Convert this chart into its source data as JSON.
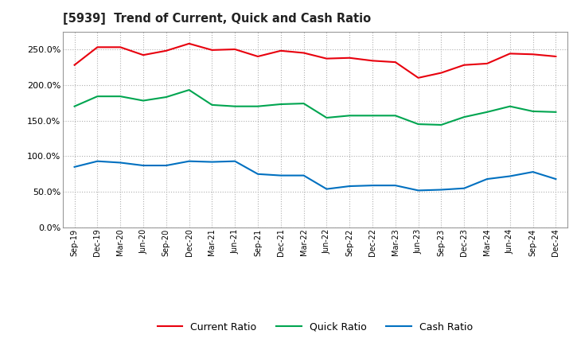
{
  "title": "[5939]  Trend of Current, Quick and Cash Ratio",
  "x_labels": [
    "Sep-19",
    "Dec-19",
    "Mar-20",
    "Jun-20",
    "Sep-20",
    "Dec-20",
    "Mar-21",
    "Jun-21",
    "Sep-21",
    "Dec-21",
    "Mar-22",
    "Jun-22",
    "Sep-22",
    "Dec-22",
    "Mar-23",
    "Jun-23",
    "Sep-23",
    "Dec-23",
    "Mar-24",
    "Jun-24",
    "Sep-24",
    "Dec-24"
  ],
  "current_ratio": [
    228,
    253,
    253,
    242,
    248,
    258,
    249,
    250,
    240,
    248,
    245,
    237,
    238,
    234,
    232,
    210,
    217,
    228,
    230,
    244,
    243,
    240
  ],
  "quick_ratio": [
    170,
    184,
    184,
    178,
    183,
    193,
    172,
    170,
    170,
    173,
    174,
    154,
    157,
    157,
    157,
    145,
    144,
    155,
    162,
    170,
    163,
    162
  ],
  "cash_ratio": [
    85,
    93,
    91,
    87,
    87,
    93,
    92,
    93,
    75,
    73,
    73,
    54,
    58,
    59,
    59,
    52,
    53,
    55,
    68,
    72,
    78,
    68
  ],
  "current_color": "#e8000d",
  "quick_color": "#00a550",
  "cash_color": "#0070c0",
  "ylim": [
    0,
    275
  ],
  "yticks": [
    0,
    50,
    100,
    150,
    200,
    250
  ],
  "background_color": "#ffffff",
  "grid_color": "#b0b0b0"
}
